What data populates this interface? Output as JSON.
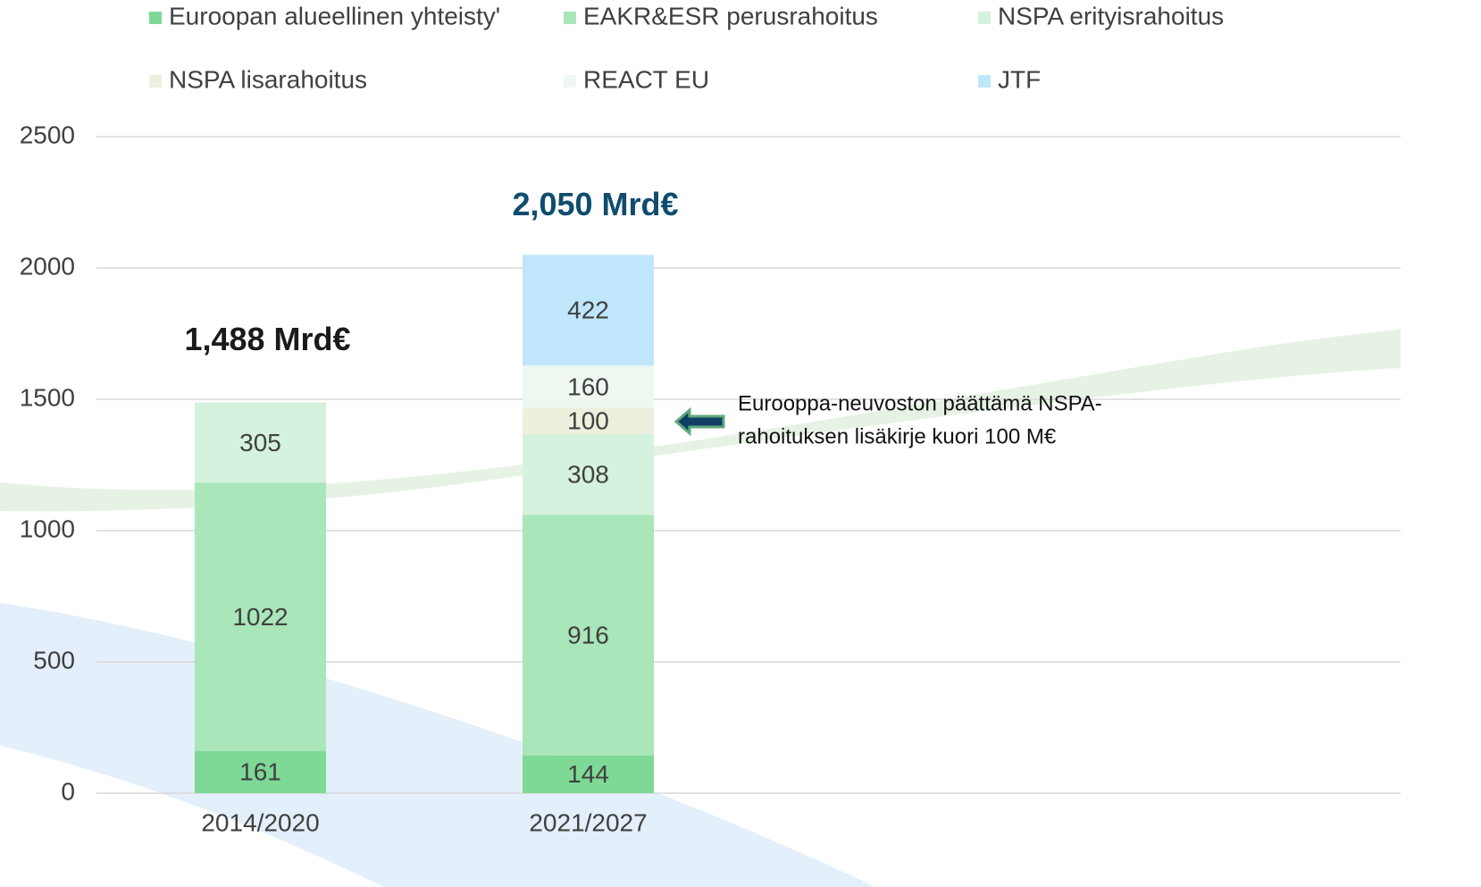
{
  "chart_data": {
    "type": "stacked_bar",
    "categories": [
      "2014/2020",
      "2021/2027"
    ],
    "series": [
      {
        "name": "Euroopan alueellinen yhteisty'",
        "color": "#7fd996",
        "values": [
          161,
          144
        ]
      },
      {
        "name": "EAKR&ESR perusrahoitus",
        "color": "#a9e6b9",
        "values": [
          1022,
          916
        ]
      },
      {
        "name": "NSPA erityisrahoitus",
        "color": "#d4f2dd",
        "values": [
          305,
          308
        ]
      },
      {
        "name": "NSPA lisarahoitus",
        "color": "#ebf1dc",
        "values": [
          null,
          100
        ]
      },
      {
        "name": "REACT EU",
        "color": "#eef8f1",
        "values": [
          null,
          160
        ]
      },
      {
        "name": "JTF",
        "color": "#bfe6fb",
        "values": [
          null,
          422
        ]
      }
    ],
    "totals": [
      {
        "value": 1488,
        "label": "1,488 Mrd€"
      },
      {
        "value": 2050,
        "label": "2,050 Mrd€"
      }
    ],
    "total_colors": [
      "#1a1a1a",
      "#0f4c6e"
    ],
    "annotation": [
      "Eurooppa-neuvoston päättämä NSPA-",
      "rahoituksen lisäkirje kuori 100 M€"
    ],
    "ylim": [
      0,
      2500
    ],
    "yticks": [
      0,
      500,
      1000,
      1500,
      2000,
      2500
    ],
    "grid": true
  }
}
